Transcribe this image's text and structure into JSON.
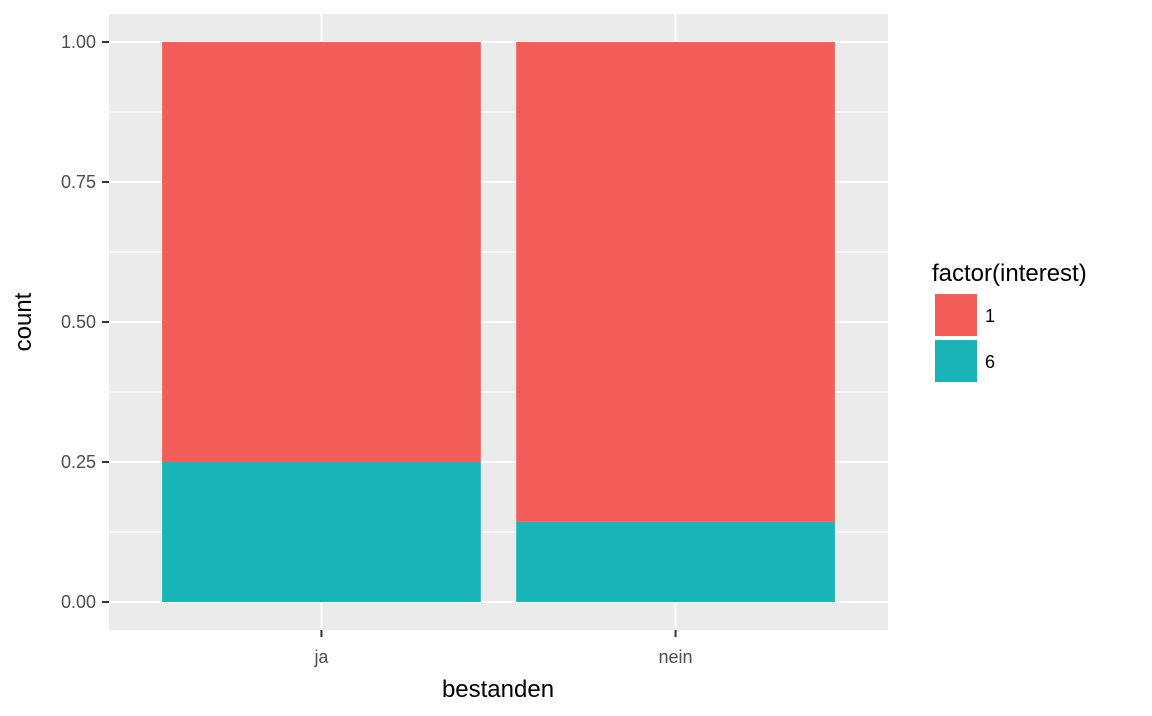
{
  "chart_data": {
    "type": "bar",
    "stacked": true,
    "categories": [
      "ja",
      "nein"
    ],
    "series": [
      {
        "name": "1",
        "values": [
          0.75,
          0.857
        ],
        "color": "#F35E5A"
      },
      {
        "name": "6",
        "values": [
          0.25,
          0.143
        ],
        "color": "#18B4B8"
      }
    ],
    "xlabel": "bestanden",
    "ylabel": "count",
    "ylim": [
      -0.05,
      1.05
    ],
    "yticks": [
      0,
      0.25,
      0.5,
      0.75,
      1.0
    ],
    "ytick_labels": [
      "0.00",
      "0.25",
      "0.50",
      "0.75",
      "1.00"
    ],
    "legend": {
      "title": "factor(interest)",
      "placement": "right"
    },
    "grid": true,
    "colors": {
      "panel": "#EBEBEB",
      "grid": "#FFFFFF",
      "background": "#FFFFFF"
    }
  }
}
